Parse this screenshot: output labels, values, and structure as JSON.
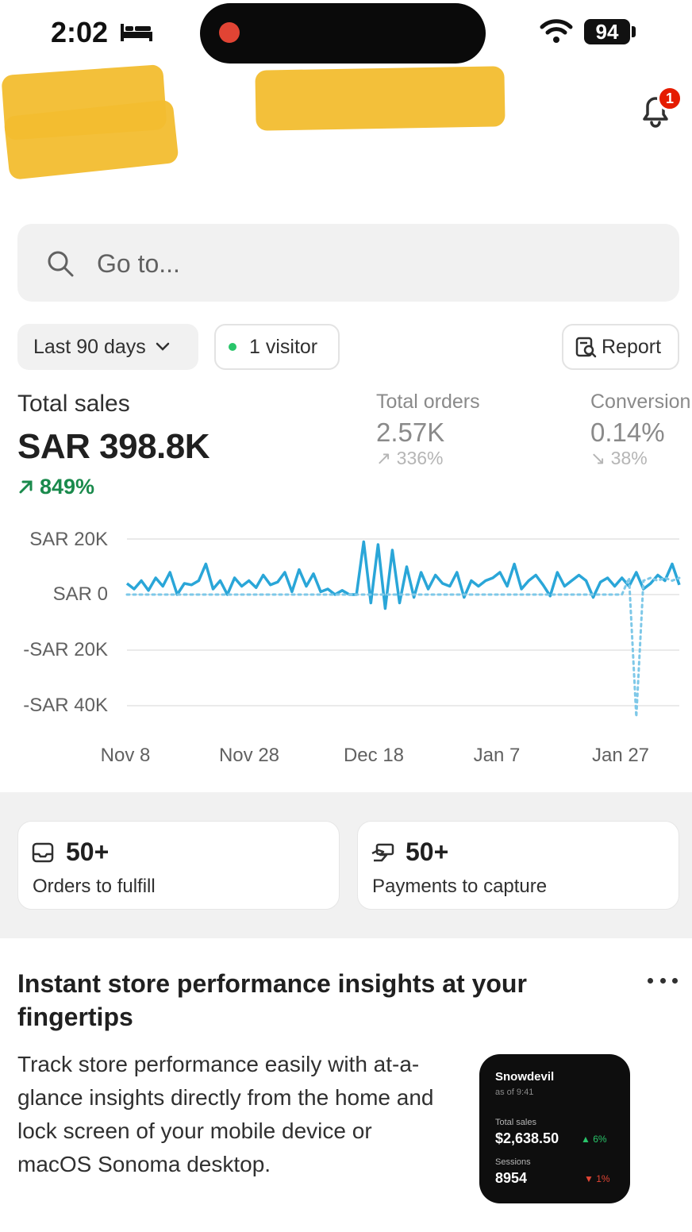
{
  "status_bar": {
    "time": "2:02",
    "battery": "94"
  },
  "notifications": {
    "count": "1"
  },
  "search": {
    "placeholder": "Go to..."
  },
  "filters": {
    "date_range": "Last 90 days",
    "visitors": "1 visitor",
    "report": "Report"
  },
  "metrics": {
    "total_sales": {
      "label": "Total sales",
      "value": "SAR 398.8K",
      "change": "849%"
    },
    "total_orders": {
      "label": "Total orders",
      "value": "2.57K",
      "change": "336%"
    },
    "conversion": {
      "label": "Conversion",
      "value": "0.14%",
      "change": "38%"
    }
  },
  "chart_data": {
    "type": "line",
    "ylabel": "",
    "xlabel": "",
    "y_ticks": [
      "SAR 20K",
      "SAR 0",
      "-SAR 20K",
      "-SAR 40K"
    ],
    "x_ticks": [
      "Nov 8",
      "Nov 28",
      "Dec 18",
      "Jan 7",
      "Jan 27"
    ],
    "ylim": [
      -45000,
      22000
    ],
    "series": [
      {
        "style": "solid",
        "values": [
          4000,
          2000,
          5000,
          1500,
          6000,
          3000,
          8000,
          0,
          4000,
          3500,
          5000,
          11000,
          2000,
          5000,
          0,
          6000,
          3000,
          5000,
          2500,
          7000,
          3500,
          4500,
          8000,
          1000,
          9000,
          3000,
          7500,
          1000,
          2000,
          0,
          1500,
          0,
          0,
          19000,
          -3000,
          18000,
          -5000,
          16000,
          -3000,
          10000,
          -1000,
          8000,
          2000,
          7000,
          4000,
          3000,
          8000,
          -1000,
          5000,
          3000,
          5000,
          6000,
          8000,
          3000,
          11000,
          2000,
          5000,
          7000,
          3500,
          -500,
          8000,
          3000,
          5000,
          7000,
          5000,
          -1000,
          4500,
          6000,
          3000,
          6000,
          3000,
          8000,
          2000,
          4000,
          7000,
          5000,
          11000,
          3500
        ],
        "color": "#2aa6d8"
      },
      {
        "style": "dotted",
        "values": [
          0,
          0,
          0,
          0,
          0,
          0,
          0,
          0,
          0,
          0,
          0,
          0,
          0,
          0,
          0,
          0,
          0,
          0,
          0,
          0,
          0,
          0,
          0,
          0,
          0,
          0,
          0,
          0,
          0,
          0,
          0,
          0,
          0,
          0,
          0,
          0,
          0,
          0,
          0,
          0,
          0,
          0,
          0,
          0,
          0,
          0,
          0,
          0,
          0,
          0,
          0,
          0,
          0,
          0,
          0,
          0,
          0,
          0,
          0,
          0,
          0,
          0,
          0,
          0,
          0,
          0,
          0,
          0,
          0,
          0,
          6000,
          -44000,
          5000,
          6000,
          5000,
          6000,
          5000,
          6000
        ],
        "color": "#7ec8e8"
      }
    ]
  },
  "tasks": [
    {
      "value": "50+",
      "label": "Orders to fulfill",
      "icon": "inbox-icon"
    },
    {
      "value": "50+",
      "label": "Payments to capture",
      "icon": "payment-icon"
    }
  ],
  "insight": {
    "title": "Instant store performance insights at your fingertips",
    "body": "Track store performance easily with at-a-glance insights directly from the home and lock screen of your mobile device or macOS Sonoma desktop.",
    "widget": {
      "store": "Snowdevil",
      "as_of": "as of 9:41",
      "sales_label": "Total sales",
      "sales_value": "$2,638.50",
      "sales_change": "▲ 6%",
      "sessions_label": "Sessions",
      "sessions_value": "8954",
      "sessions_change": "▼ 1%"
    }
  },
  "colors": {
    "positive": "#1a8a4c",
    "badge": "#e51c00",
    "chart_line": "#2aa6d8"
  }
}
